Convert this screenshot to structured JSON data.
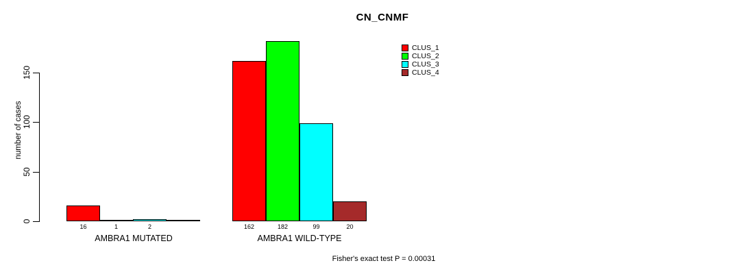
{
  "title": "CN_CNMF",
  "y_axis": {
    "label": "number of cases",
    "ticks": [
      "0",
      "50",
      "100",
      "150"
    ]
  },
  "footer": {
    "text": "Fisher's exact test P = 0.00031"
  },
  "legend": {
    "items": [
      {
        "label": "CLUS_1",
        "color": "#FF0000"
      },
      {
        "label": "CLUS_2",
        "color": "#00FF00"
      },
      {
        "label": "CLUS_3",
        "color": "#00FFFF"
      },
      {
        "label": "CLUS_4",
        "color": "#A52A2A"
      }
    ]
  },
  "chart_data": {
    "type": "bar",
    "title": "CN_CNMF",
    "xlabel": "",
    "ylabel": "number of cases",
    "ylim": [
      0,
      190
    ],
    "yticks": [
      0,
      50,
      100,
      150
    ],
    "grid": false,
    "legend_position": "top-right",
    "categories": [
      "AMBRA1 MUTATED",
      "AMBRA1 WILD-TYPE"
    ],
    "series": [
      {
        "name": "CLUS_1",
        "color": "#FF0000",
        "values": [
          16,
          162
        ],
        "value_labels": [
          "16",
          "162"
        ]
      },
      {
        "name": "CLUS_2",
        "color": "#00FF00",
        "values": [
          1,
          182
        ],
        "value_labels": [
          "1",
          "182"
        ]
      },
      {
        "name": "CLUS_3",
        "color": "#00FFFF",
        "values": [
          2,
          99
        ],
        "value_labels": [
          "2",
          "99"
        ]
      },
      {
        "name": "CLUS_4",
        "color": "#A52A2A",
        "values": [
          0,
          20
        ],
        "value_labels": [
          "",
          "20"
        ]
      }
    ],
    "annotation": "Fisher's exact test P = 0.00031"
  }
}
